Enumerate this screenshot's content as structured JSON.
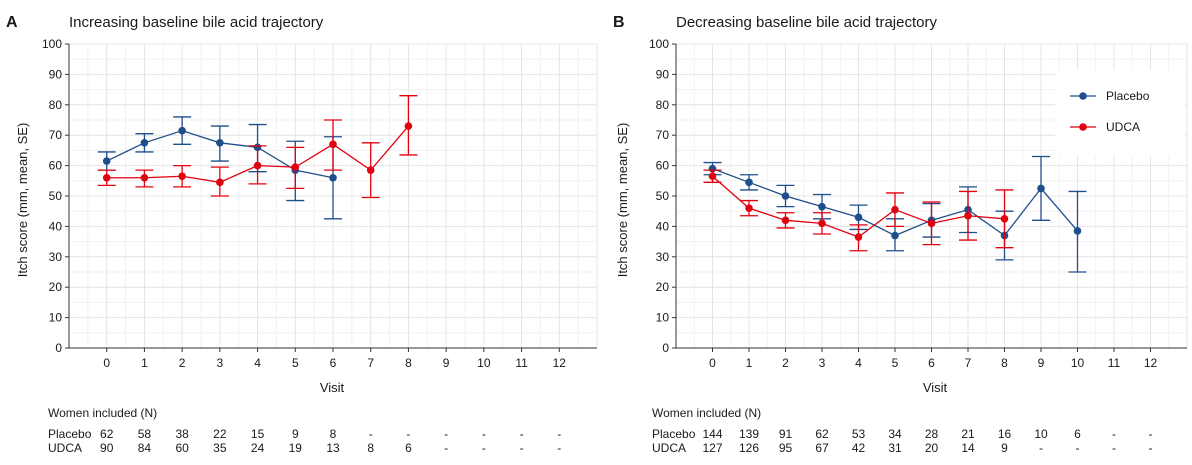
{
  "chart_data": [
    {
      "type": "line",
      "panel_letter": "A",
      "title": "Increasing baseline bile acid trajectory",
      "xlabel": "Visit",
      "ylabel": "Itch score (mm, mean, SE)",
      "ylim": [
        0,
        100
      ],
      "yticks": [
        0,
        10,
        20,
        30,
        40,
        50,
        60,
        70,
        80,
        90,
        100
      ],
      "x_ticks": [
        0,
        1,
        2,
        3,
        4,
        5,
        6,
        7,
        8,
        9,
        10,
        11,
        12
      ],
      "xlim": [
        -1,
        13
      ],
      "grid": true,
      "legend": "none",
      "series": [
        {
          "name": "Placebo",
          "color": "#1f4e8c",
          "x": [
            0,
            1,
            2,
            3,
            4,
            5,
            6
          ],
          "y": [
            61.5,
            67.5,
            71.5,
            67.5,
            66,
            58.5,
            56
          ],
          "se_low": [
            58.5,
            64.5,
            67,
            61.5,
            58,
            48.5,
            42.5
          ],
          "se_high": [
            64.5,
            70.5,
            76,
            73,
            73.5,
            68,
            69.5
          ]
        },
        {
          "name": "UDCA",
          "color": "#e3000f",
          "x": [
            0,
            1,
            2,
            3,
            4,
            5,
            6,
            7,
            8
          ],
          "y": [
            56,
            56,
            56.5,
            54.5,
            60,
            59.5,
            67,
            58.5,
            73
          ],
          "se_low": [
            53.5,
            53,
            53,
            50,
            54,
            52.5,
            58.5,
            49.5,
            63.5
          ],
          "se_high": [
            58.5,
            58.5,
            60,
            59.5,
            66.5,
            66,
            75,
            67.5,
            83
          ]
        }
      ],
      "n_table": {
        "heading": "Women included (N)",
        "rows": [
          {
            "label": "Placebo",
            "values": [
              "62",
              "58",
              "38",
              "22",
              "15",
              "9",
              "8",
              "-",
              "-",
              "-",
              "-",
              "-",
              "-"
            ]
          },
          {
            "label": "UDCA",
            "values": [
              "90",
              "84",
              "60",
              "35",
              "24",
              "19",
              "13",
              "8",
              "6",
              "-",
              "-",
              "-",
              "-"
            ]
          }
        ]
      }
    },
    {
      "type": "line",
      "panel_letter": "B",
      "title": "Decreasing baseline bile acid trajectory",
      "xlabel": "Visit",
      "ylabel": "Itch score (mm, mean, SE)",
      "ylim": [
        0,
        100
      ],
      "yticks": [
        0,
        10,
        20,
        30,
        40,
        50,
        60,
        70,
        80,
        90,
        100
      ],
      "x_ticks": [
        0,
        1,
        2,
        3,
        4,
        5,
        6,
        7,
        8,
        9,
        10,
        11,
        12
      ],
      "xlim": [
        -1,
        13
      ],
      "grid": true,
      "legend": "top-right",
      "series": [
        {
          "name": "Placebo",
          "color": "#1f4e8c",
          "x": [
            0,
            1,
            2,
            3,
            4,
            5,
            6,
            7,
            8,
            9,
            10
          ],
          "y": [
            59,
            54.5,
            50,
            46.5,
            43,
            37,
            42,
            45.5,
            37,
            52.5,
            38.5
          ],
          "se_low": [
            57,
            52,
            46.5,
            42.5,
            39,
            32,
            36.5,
            38,
            29,
            42,
            25
          ],
          "se_high": [
            61,
            57,
            53.5,
            50.5,
            47,
            42.5,
            47.5,
            53,
            45,
            63,
            51.5
          ]
        },
        {
          "name": "UDCA",
          "color": "#e3000f",
          "x": [
            0,
            1,
            2,
            3,
            4,
            5,
            6,
            7,
            8
          ],
          "y": [
            56.5,
            46,
            42,
            41,
            36.5,
            45.5,
            41,
            43.5,
            42.5
          ],
          "se_low": [
            54.5,
            43.5,
            39.5,
            37.5,
            32,
            40,
            34,
            35.5,
            33
          ],
          "se_high": [
            58.5,
            48.5,
            44.5,
            44.5,
            40.5,
            51,
            48,
            51.5,
            52
          ]
        }
      ],
      "n_table": {
        "heading": "Women included (N)",
        "rows": [
          {
            "label": "Placebo",
            "values": [
              "144",
              "139",
              "91",
              "62",
              "53",
              "34",
              "28",
              "21",
              "16",
              "10",
              "6",
              "-",
              "-"
            ]
          },
          {
            "label": "UDCA",
            "values": [
              "127",
              "126",
              "95",
              "67",
              "42",
              "31",
              "20",
              "14",
              "9",
              "-",
              "-",
              "-",
              "-"
            ]
          }
        ]
      }
    }
  ]
}
